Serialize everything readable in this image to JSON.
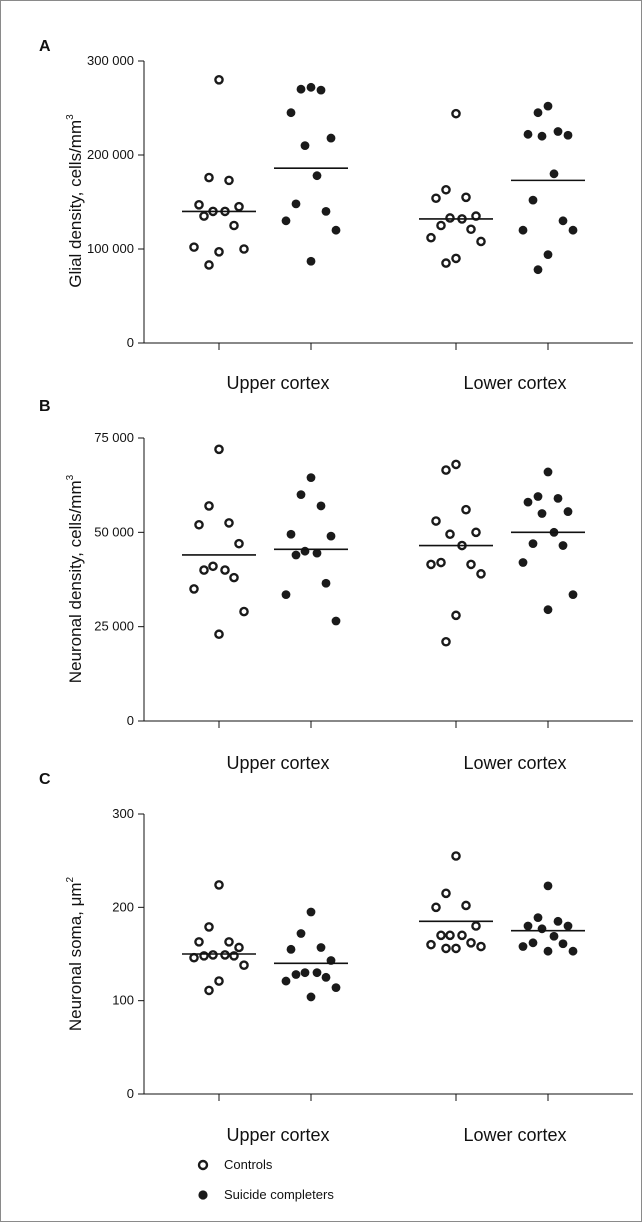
{
  "chart_data": [
    {
      "panel": "A",
      "type": "scatter",
      "ylabel": "Glial density, cells/mm",
      "ylabel_sup": "3",
      "ylim": [
        0,
        300000
      ],
      "yticks": [
        0,
        100000,
        200000,
        300000
      ],
      "ytick_labels": [
        "0",
        "100 000",
        "200 000",
        "300 000"
      ],
      "categories": [
        "Upper cortex",
        "Lower cortex"
      ],
      "series": [
        {
          "name": "Controls",
          "style": "open",
          "values": [
            [
              280000,
              176000,
              173000,
              147000,
              145000,
              140000,
              140000,
              135000,
              125000,
              102000,
              100000,
              97000,
              83000
            ],
            [
              244000,
              163000,
              155000,
              154000,
              135000,
              133000,
              132000,
              125000,
              121000,
              112000,
              108000,
              90000,
              85000
            ]
          ],
          "means": [
            140000,
            132000
          ]
        },
        {
          "name": "Suicide completers",
          "style": "filled",
          "values": [
            [
              272000,
              270000,
              269000,
              245000,
              218000,
              210000,
              178000,
              148000,
              140000,
              130000,
              120000,
              87000
            ],
            [
              252000,
              245000,
              225000,
              222000,
              221000,
              220000,
              180000,
              152000,
              130000,
              120000,
              120000,
              94000,
              78000
            ]
          ],
          "means": [
            186000,
            173000
          ]
        }
      ]
    },
    {
      "panel": "B",
      "type": "scatter",
      "ylabel": "Neuronal density, cells/mm",
      "ylabel_sup": "3",
      "ylim": [
        0,
        75000
      ],
      "yticks": [
        0,
        25000,
        50000,
        75000
      ],
      "ytick_labels": [
        "0",
        "25 000",
        "50 000",
        "75 000"
      ],
      "categories": [
        "Upper cortex",
        "Lower cortex"
      ],
      "series": [
        {
          "name": "Controls",
          "style": "open",
          "values": [
            [
              72000,
              57000,
              52500,
              52000,
              47000,
              41000,
              40000,
              40000,
              38000,
              35000,
              29000,
              23000
            ],
            [
              68000,
              66500,
              56000,
              53000,
              50000,
              49500,
              46500,
              42000,
              41500,
              41500,
              39000,
              28000,
              21000
            ]
          ],
          "means": [
            44000,
            46500
          ]
        },
        {
          "name": "Suicide completers",
          "style": "filled",
          "values": [
            [
              64500,
              60000,
              57000,
              49500,
              49000,
              45000,
              44500,
              44000,
              36500,
              33500,
              26500
            ],
            [
              66000,
              59500,
              59000,
              58000,
              55500,
              55000,
              50000,
              47000,
              46500,
              42000,
              33500,
              29500
            ]
          ],
          "means": [
            45500,
            50000
          ]
        }
      ]
    },
    {
      "panel": "C",
      "type": "scatter",
      "ylabel": "Neuronal soma, μm",
      "ylabel_sup": "2",
      "ylim": [
        0,
        300
      ],
      "yticks": [
        0,
        100,
        200,
        300
      ],
      "ytick_labels": [
        "0",
        "100",
        "200",
        "300"
      ],
      "categories": [
        "Upper cortex",
        "Lower cortex"
      ],
      "series": [
        {
          "name": "Controls",
          "style": "open",
          "values": [
            [
              224,
              179,
              163,
              163,
              157,
              149,
              149,
              148,
              148,
              146,
              138,
              121,
              111
            ],
            [
              255,
              215,
              202,
              200,
              180,
              170,
              170,
              170,
              162,
              160,
              158,
              156,
              156
            ]
          ],
          "means": [
            150,
            185
          ]
        },
        {
          "name": "Suicide completers",
          "style": "filled",
          "values": [
            [
              195,
              172,
              157,
              155,
              143,
              130,
              130,
              128,
              125,
              121,
              114,
              104
            ],
            [
              223,
              189,
              185,
              180,
              180,
              177,
              169,
              162,
              161,
              158,
              153,
              153
            ]
          ],
          "means": [
            140,
            175
          ]
        }
      ]
    }
  ],
  "legend": {
    "position": "bottom-left",
    "items": [
      {
        "label": "Controls",
        "style": "open"
      },
      {
        "label": "Suicide completers",
        "style": "filled"
      }
    ]
  }
}
